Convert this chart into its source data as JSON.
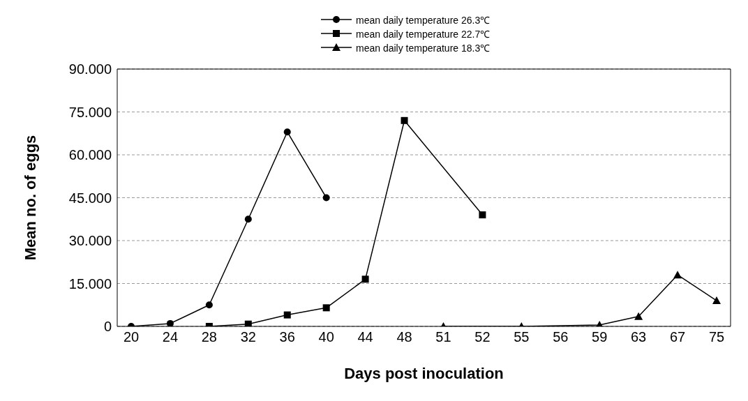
{
  "chart_data": {
    "type": "line",
    "xlabel": "Days post inoculation",
    "ylabel": "Mean no. of eggs",
    "categories": [
      "20",
      "24",
      "28",
      "32",
      "36",
      "40",
      "44",
      "48",
      "51",
      "52",
      "55",
      "56",
      "59",
      "63",
      "67",
      "75"
    ],
    "series": [
      {
        "name": "mean daily temperature 26.3℃",
        "color": "#000000",
        "marker": "circle",
        "values": [
          0,
          1,
          7.5,
          37.5,
          68,
          45,
          null,
          null,
          null,
          null,
          null,
          null,
          null,
          null,
          null,
          null
        ]
      },
      {
        "name": "mean daily temperature 22.7℃",
        "color": "#000000",
        "marker": "square",
        "values": [
          null,
          null,
          0,
          0.8,
          4,
          6.5,
          16.5,
          72,
          null,
          39,
          null,
          null,
          null,
          null,
          null,
          null
        ]
      },
      {
        "name": "mean daily temperature 18.3℃",
        "color": "#000000",
        "marker": "triangle",
        "values": [
          null,
          null,
          null,
          null,
          null,
          null,
          null,
          null,
          0,
          null,
          0,
          null,
          0.5,
          3.5,
          18,
          9
        ]
      }
    ],
    "ylim": [
      0,
      90
    ],
    "yticks": [
      {
        "value": 0,
        "label": "0"
      },
      {
        "value": 15,
        "label": "15.000"
      },
      {
        "value": 30,
        "label": "30.000"
      },
      {
        "value": 45,
        "label": "45.000"
      },
      {
        "value": 60,
        "label": "60.000"
      },
      {
        "value": 75,
        "label": "75.000"
      },
      {
        "value": 90,
        "label": "90.000"
      }
    ],
    "grid": "y",
    "legend": "top",
    "line_style": "solid"
  }
}
